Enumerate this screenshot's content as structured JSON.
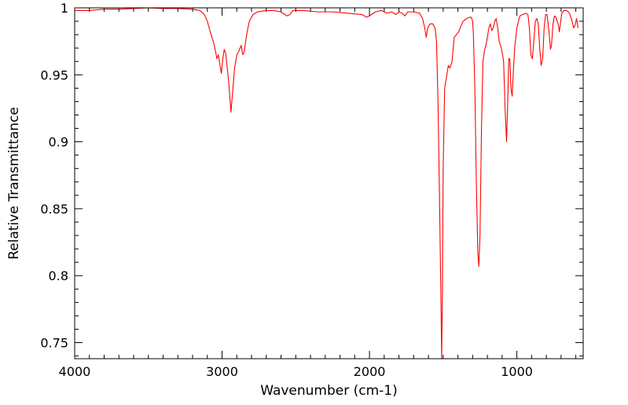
{
  "chart_data": {
    "type": "line",
    "title": "",
    "xlabel": "Wavenumber (cm-1)",
    "ylabel": "Relative Transmittance",
    "xlim": [
      4000,
      550
    ],
    "ylim": [
      0.738,
      1.0
    ],
    "x_reversed": true,
    "grid": false,
    "legend": "none",
    "x_ticks": [
      4000,
      3000,
      2000,
      1000
    ],
    "x_tick_labels": [
      "4000",
      "3000",
      "2000",
      "1000"
    ],
    "y_ticks": [
      1.0,
      0.95,
      0.9,
      0.85,
      0.8,
      0.75
    ],
    "y_tick_labels": [
      "1",
      "0.95",
      "0.9",
      "0.85",
      "0.8",
      "0.75"
    ],
    "series": [
      {
        "color": "#ff0000",
        "points": [
          [
            4000,
            0.998
          ],
          [
            3900,
            0.998
          ],
          [
            3800,
            0.999
          ],
          [
            3700,
            0.999
          ],
          [
            3600,
            0.9995
          ],
          [
            3500,
            1.0
          ],
          [
            3400,
            0.9995
          ],
          [
            3300,
            0.9995
          ],
          [
            3200,
            0.999
          ],
          [
            3150,
            0.998
          ],
          [
            3120,
            0.995
          ],
          [
            3100,
            0.99
          ],
          [
            3080,
            0.982
          ],
          [
            3060,
            0.975
          ],
          [
            3045,
            0.968
          ],
          [
            3035,
            0.962
          ],
          [
            3025,
            0.965
          ],
          [
            3015,
            0.958
          ],
          [
            3005,
            0.951
          ],
          [
            2995,
            0.962
          ],
          [
            2985,
            0.969
          ],
          [
            2975,
            0.966
          ],
          [
            2965,
            0.955
          ],
          [
            2955,
            0.945
          ],
          [
            2940,
            0.922
          ],
          [
            2930,
            0.935
          ],
          [
            2915,
            0.955
          ],
          [
            2900,
            0.965
          ],
          [
            2885,
            0.968
          ],
          [
            2870,
            0.972
          ],
          [
            2860,
            0.965
          ],
          [
            2850,
            0.967
          ],
          [
            2840,
            0.975
          ],
          [
            2830,
            0.982
          ],
          [
            2815,
            0.99
          ],
          [
            2790,
            0.995
          ],
          [
            2760,
            0.997
          ],
          [
            2700,
            0.998
          ],
          [
            2650,
            0.998
          ],
          [
            2600,
            0.997
          ],
          [
            2560,
            0.994
          ],
          [
            2540,
            0.995
          ],
          [
            2520,
            0.998
          ],
          [
            2450,
            0.998
          ],
          [
            2350,
            0.997
          ],
          [
            2250,
            0.997
          ],
          [
            2150,
            0.996
          ],
          [
            2050,
            0.995
          ],
          [
            2020,
            0.993
          ],
          [
            2000,
            0.994
          ],
          [
            1960,
            0.997
          ],
          [
            1920,
            0.998
          ],
          [
            1880,
            0.996
          ],
          [
            1850,
            0.997
          ],
          [
            1820,
            0.995
          ],
          [
            1800,
            0.997
          ],
          [
            1780,
            0.996
          ],
          [
            1760,
            0.994
          ],
          [
            1740,
            0.997
          ],
          [
            1700,
            0.997
          ],
          [
            1660,
            0.996
          ],
          [
            1640,
            0.992
          ],
          [
            1625,
            0.985
          ],
          [
            1615,
            0.978
          ],
          [
            1605,
            0.985
          ],
          [
            1590,
            0.988
          ],
          [
            1570,
            0.988
          ],
          [
            1555,
            0.985
          ],
          [
            1545,
            0.975
          ],
          [
            1535,
            0.93
          ],
          [
            1525,
            0.86
          ],
          [
            1515,
            0.78
          ],
          [
            1510,
            0.738
          ],
          [
            1505,
            0.79
          ],
          [
            1500,
            0.88
          ],
          [
            1490,
            0.94
          ],
          [
            1475,
            0.95
          ],
          [
            1465,
            0.957
          ],
          [
            1455,
            0.955
          ],
          [
            1440,
            0.96
          ],
          [
            1425,
            0.978
          ],
          [
            1410,
            0.98
          ],
          [
            1395,
            0.982
          ],
          [
            1385,
            0.985
          ],
          [
            1365,
            0.99
          ],
          [
            1340,
            0.992
          ],
          [
            1320,
            0.993
          ],
          [
            1310,
            0.993
          ],
          [
            1300,
            0.99
          ],
          [
            1295,
            0.98
          ],
          [
            1285,
            0.94
          ],
          [
            1275,
            0.87
          ],
          [
            1265,
            0.817
          ],
          [
            1258,
            0.807
          ],
          [
            1250,
            0.83
          ],
          [
            1240,
            0.91
          ],
          [
            1230,
            0.96
          ],
          [
            1220,
            0.968
          ],
          [
            1210,
            0.972
          ],
          [
            1200,
            0.978
          ],
          [
            1190,
            0.985
          ],
          [
            1180,
            0.988
          ],
          [
            1170,
            0.983
          ],
          [
            1160,
            0.985
          ],
          [
            1150,
            0.99
          ],
          [
            1140,
            0.992
          ],
          [
            1130,
            0.985
          ],
          [
            1120,
            0.975
          ],
          [
            1105,
            0.97
          ],
          [
            1090,
            0.96
          ],
          [
            1080,
            0.925
          ],
          [
            1070,
            0.9
          ],
          [
            1062,
            0.93
          ],
          [
            1055,
            0.962
          ],
          [
            1048,
            0.962
          ],
          [
            1040,
            0.94
          ],
          [
            1032,
            0.934
          ],
          [
            1025,
            0.95
          ],
          [
            1015,
            0.97
          ],
          [
            1000,
            0.985
          ],
          [
            980,
            0.994
          ],
          [
            960,
            0.995
          ],
          [
            940,
            0.996
          ],
          [
            925,
            0.995
          ],
          [
            915,
            0.985
          ],
          [
            905,
            0.965
          ],
          [
            895,
            0.962
          ],
          [
            885,
            0.975
          ],
          [
            875,
            0.99
          ],
          [
            865,
            0.992
          ],
          [
            855,
            0.988
          ],
          [
            845,
            0.97
          ],
          [
            835,
            0.957
          ],
          [
            825,
            0.962
          ],
          [
            815,
            0.985
          ],
          [
            805,
            0.995
          ],
          [
            795,
            0.995
          ],
          [
            780,
            0.98
          ],
          [
            772,
            0.969
          ],
          [
            765,
            0.972
          ],
          [
            755,
            0.988
          ],
          [
            745,
            0.994
          ],
          [
            735,
            0.993
          ],
          [
            720,
            0.988
          ],
          [
            712,
            0.982
          ],
          [
            705,
            0.988
          ],
          [
            695,
            0.996
          ],
          [
            680,
            0.998
          ],
          [
            665,
            0.998
          ],
          [
            650,
            0.997
          ],
          [
            640,
            0.995
          ],
          [
            625,
            0.99
          ],
          [
            615,
            0.985
          ],
          [
            605,
            0.987
          ],
          [
            595,
            0.992
          ],
          [
            585,
            0.985
          ]
        ]
      }
    ]
  }
}
